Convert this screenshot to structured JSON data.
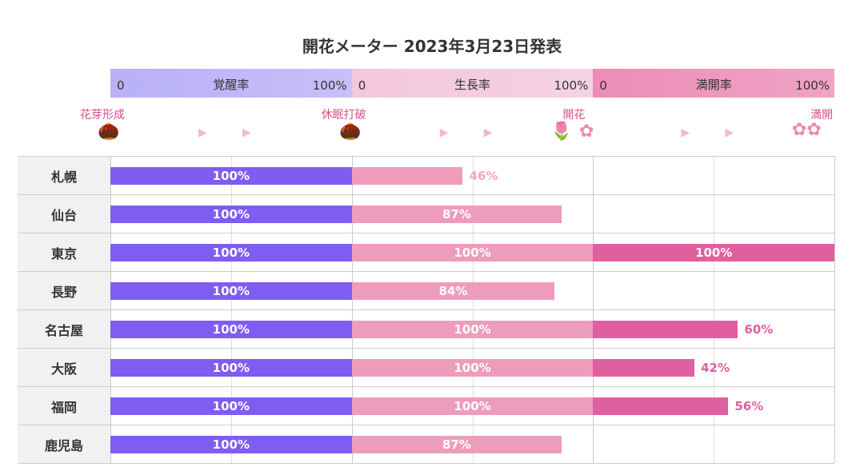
{
  "chart_data": {
    "type": "bar",
    "title": "開花メーター 2023年3月23日発表",
    "stages": [
      {
        "name": "覚醒率",
        "min_label": "0",
        "max_label": "100%",
        "color": "#7f5cf2",
        "header_color": "#b9b0f7"
      },
      {
        "name": "生長率",
        "min_label": "0",
        "max_label": "100%",
        "color": "#ee9cbb",
        "header_color": "#f3c7dc"
      },
      {
        "name": "満開率",
        "min_label": "0",
        "max_label": "100%",
        "color": "#e0609f",
        "header_color": "#ec8db6"
      }
    ],
    "milestones": [
      "花芽形成",
      "休眠打破",
      "開花",
      "満開"
    ],
    "categories": [
      "札幌",
      "仙台",
      "東京",
      "長野",
      "名古屋",
      "大阪",
      "福岡",
      "鹿児島"
    ],
    "series": [
      {
        "name": "覚醒率",
        "values": [
          100,
          100,
          100,
          100,
          100,
          100,
          100,
          100
        ]
      },
      {
        "name": "生長率",
        "values": [
          46,
          87,
          100,
          84,
          100,
          100,
          100,
          87
        ]
      },
      {
        "name": "満開率",
        "values": [
          0,
          0,
          100,
          0,
          60,
          42,
          56,
          0
        ]
      }
    ],
    "xlim": [
      0,
      100
    ],
    "grid": true
  }
}
